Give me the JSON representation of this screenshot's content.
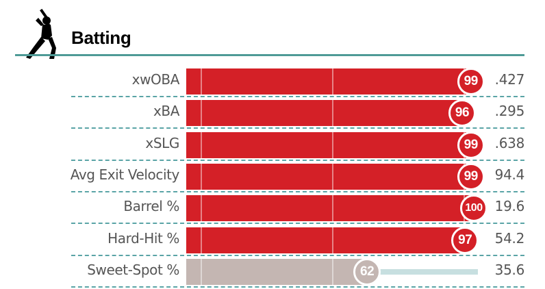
{
  "header": {
    "title": "Batting",
    "icon": "batter-silhouette-icon"
  },
  "colors": {
    "accent_teal": "#4e9a96",
    "elite_red": "#d42027",
    "average_gray": "#c4b6b2",
    "track_remainder": "#c7dfe0",
    "label_gray": "#555555"
  },
  "rows": [
    {
      "label": "xwOBA",
      "percentile": 99,
      "value": ".427",
      "tier": "elite"
    },
    {
      "label": "xBA",
      "percentile": 96,
      "value": ".295",
      "tier": "elite"
    },
    {
      "label": "xSLG",
      "percentile": 99,
      "value": ".638",
      "tier": "elite"
    },
    {
      "label": "Avg Exit Velocity",
      "percentile": 99,
      "value": "94.4",
      "tier": "elite"
    },
    {
      "label": "Barrel %",
      "percentile": 100,
      "value": "19.6",
      "tier": "elite"
    },
    {
      "label": "Hard-Hit %",
      "percentile": 97,
      "value": "54.2",
      "tier": "elite"
    },
    {
      "label": "Sweet-Spot %",
      "percentile": 62,
      "value": "35.6",
      "tier": "average"
    }
  ]
}
